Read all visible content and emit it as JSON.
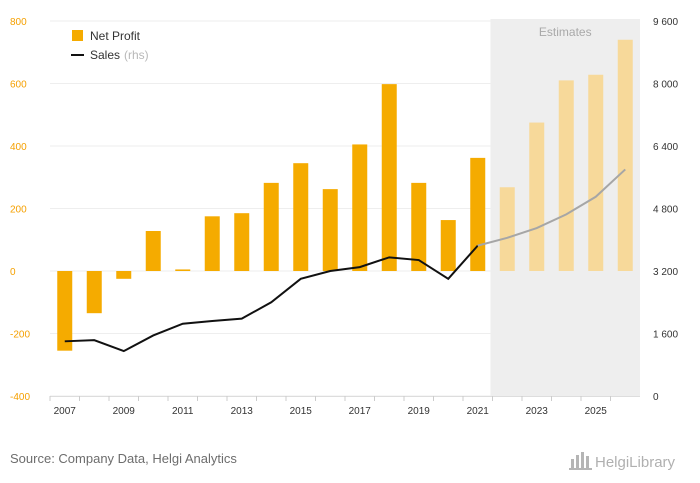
{
  "chart_data": {
    "type": "bar",
    "title": "",
    "categories": [
      "2007",
      "2008",
      "2009",
      "2010",
      "2011",
      "2012",
      "2013",
      "2014",
      "2015",
      "2016",
      "2017",
      "2018",
      "2019",
      "2020",
      "2021",
      "2022",
      "2023",
      "2024",
      "2025",
      "2026"
    ],
    "x_tick_labels": [
      "2007",
      "2009",
      "2011",
      "2013",
      "2015",
      "2017",
      "2019",
      "2021",
      "2023",
      "2025"
    ],
    "series": [
      {
        "name": "Net Profit",
        "kind": "bar",
        "axis": "left",
        "values": [
          -255,
          -135,
          -25,
          128,
          5,
          175,
          185,
          282,
          345,
          262,
          405,
          598,
          282,
          163,
          362,
          268,
          475,
          610,
          628,
          740
        ],
        "estimated": [
          false,
          false,
          false,
          false,
          false,
          false,
          false,
          false,
          false,
          false,
          false,
          false,
          false,
          false,
          false,
          true,
          true,
          true,
          true,
          true
        ]
      },
      {
        "name": "Sales",
        "name_suffix": "(rhs)",
        "kind": "line",
        "axis": "right",
        "values": [
          1400,
          1430,
          1150,
          1550,
          1850,
          1920,
          1980,
          2400,
          3000,
          3200,
          3300,
          3550,
          3480,
          3000,
          3850,
          4050,
          4300,
          4650,
          5100,
          5800
        ],
        "estimated": [
          false,
          false,
          false,
          false,
          false,
          false,
          false,
          false,
          false,
          false,
          false,
          false,
          false,
          false,
          false,
          true,
          true,
          true,
          true,
          true
        ]
      }
    ],
    "y_left": {
      "min": -400,
      "max": 800,
      "ticks": [
        -400,
        -200,
        0,
        200,
        400,
        600,
        800
      ],
      "tick_labels": [
        "-400",
        "-200",
        "0",
        "200",
        "400",
        "600",
        "800"
      ]
    },
    "y_right": {
      "min": 0,
      "max": 9600,
      "ticks": [
        0,
        1600,
        3200,
        4800,
        6400,
        8000,
        9600
      ],
      "tick_labels": [
        "0",
        "1 600",
        "3 200",
        "4 800",
        "6 400",
        "8 000",
        "9 600"
      ]
    },
    "estimates_label": "Estimates",
    "estimates_from": "2022",
    "legend_position": "top-left",
    "grid": true
  },
  "colors": {
    "bar": "#f5ab00",
    "bar_estimate": "#f7d99a",
    "line": "#111111",
    "line_estimate": "#a6a6a6",
    "left_axis_text": "#f5a000",
    "right_axis_text": "#333333",
    "estimate_bg": "#eeeeee",
    "grid": "#eeeeee"
  },
  "source": "Source: Company Data, Helgi Analytics",
  "brand": "HelgiLibrary"
}
